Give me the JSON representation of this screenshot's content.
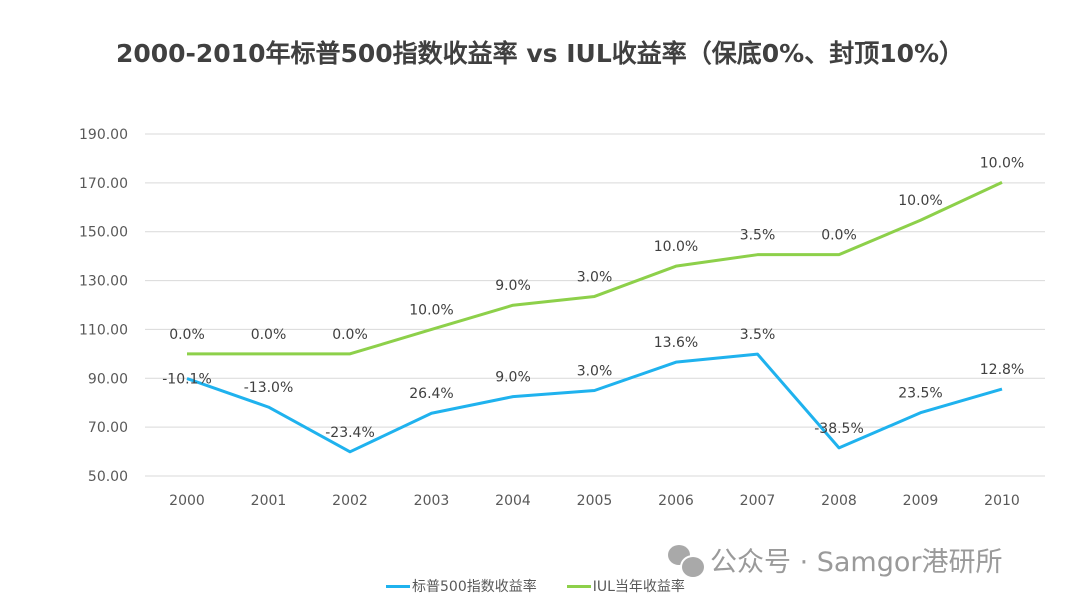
{
  "chart_data": {
    "type": "line",
    "title": "2000-2010年标普500指数收益率 vs IUL收益率（保底0%、封顶10%）",
    "xlabel": "",
    "ylabel": "",
    "categories": [
      "2000",
      "2001",
      "2002",
      "2003",
      "2004",
      "2005",
      "2006",
      "2007",
      "2008",
      "2009",
      "2010"
    ],
    "ylim": [
      50,
      190
    ],
    "yticks": [
      "50.00",
      "70.00",
      "90.00",
      "110.00",
      "130.00",
      "150.00",
      "170.00",
      "190.00"
    ],
    "grid": true,
    "legend_position": "bottom",
    "series": [
      {
        "name": "标普500指数收益率",
        "color": "#1FB2EE",
        "values": [
          89.9,
          78.2,
          59.9,
          75.7,
          82.5,
          85.0,
          96.6,
          99.9,
          61.5,
          75.9,
          85.6
        ],
        "labels": [
          "-10.1%",
          "-13.0%",
          "-23.4%",
          "26.4%",
          "9.0%",
          "3.0%",
          "13.6%",
          "3.5%",
          "-38.5%",
          "23.5%",
          "12.8%"
        ]
      },
      {
        "name": "IUL当年收益率",
        "color": "#8DD04A",
        "values": [
          100,
          100,
          100,
          110,
          119.9,
          123.5,
          135.9,
          140.6,
          140.6,
          154.7,
          170.2
        ],
        "labels": [
          "0.0%",
          "0.0%",
          "0.0%",
          "10.0%",
          "9.0%",
          "3.0%",
          "10.0%",
          "3.5%",
          "0.0%",
          "10.0%",
          "10.0%"
        ]
      }
    ]
  },
  "watermark": "公众号 · Samgor港研所"
}
